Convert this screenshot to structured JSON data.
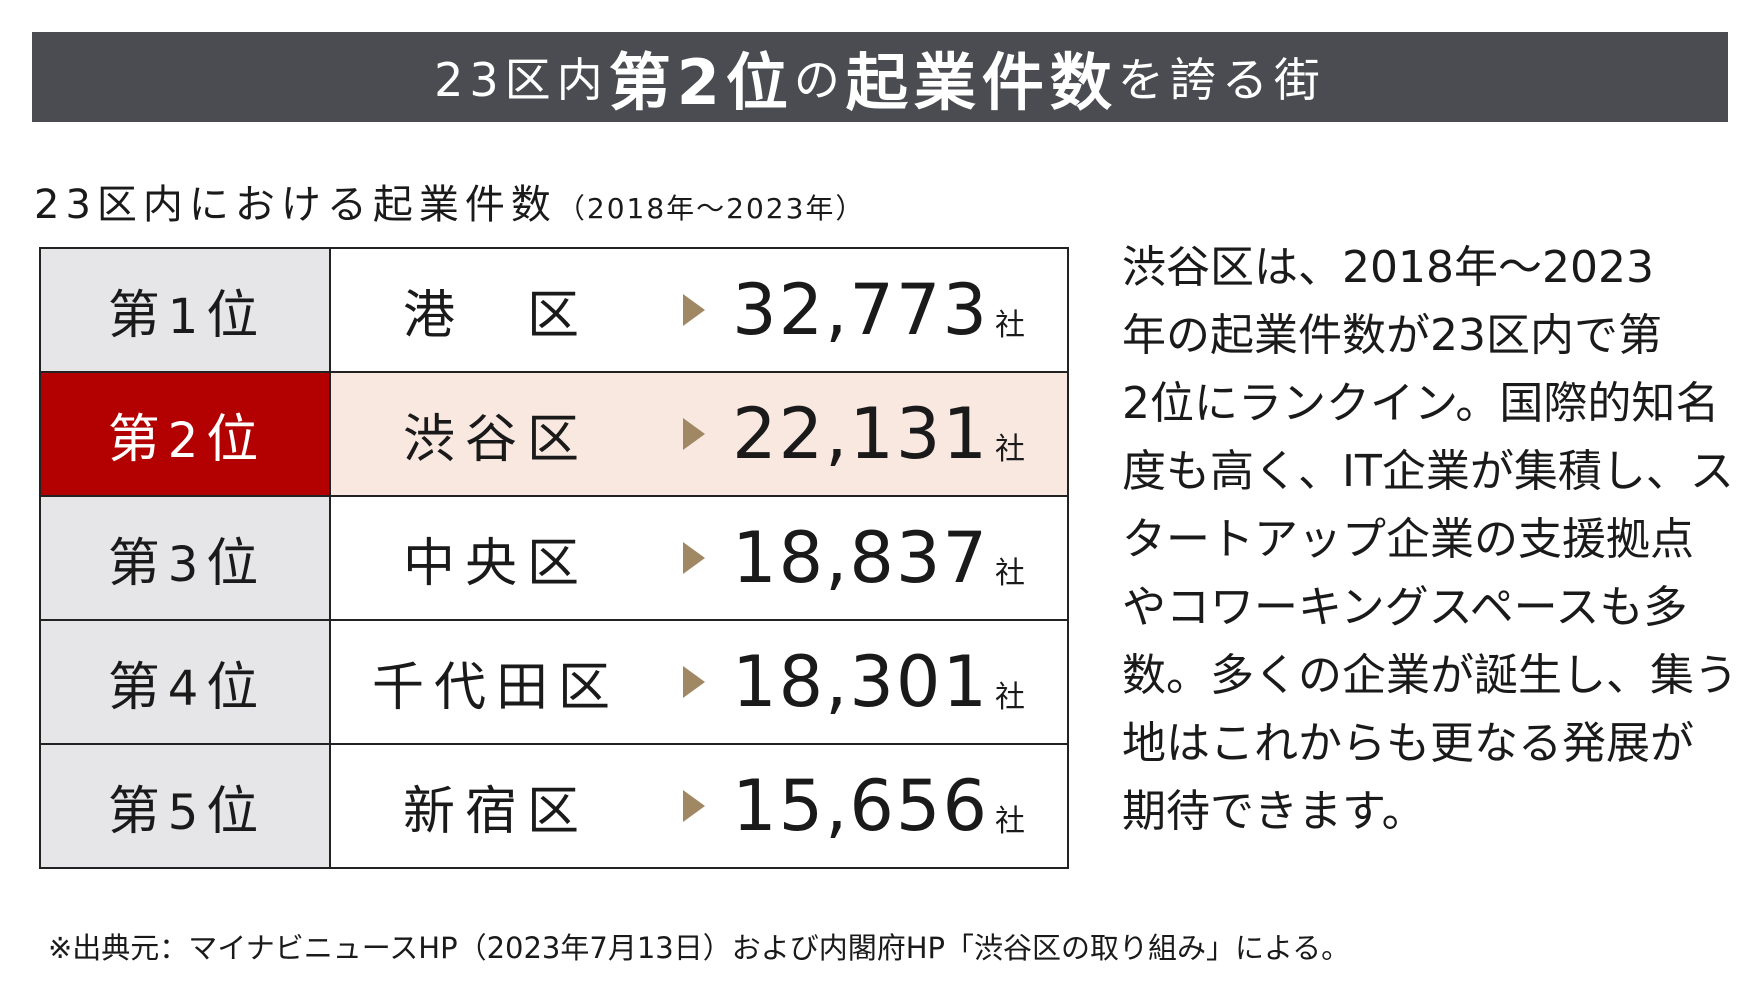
{
  "banner": {
    "part1": "23区内",
    "part2": "第2位",
    "part3": "の",
    "part4": "起業件数",
    "part5": "を誇る街"
  },
  "subtitle": {
    "main": "23区内における起業件数",
    "period": "（2018年～2023年）"
  },
  "ranking": [
    {
      "prefix": "第",
      "num": "1",
      "suffix": "位",
      "ward": "港　区",
      "value": "32,773",
      "unit": "社",
      "highlight": false
    },
    {
      "prefix": "第",
      "num": "2",
      "suffix": "位",
      "ward": "渋谷区",
      "value": "22,131",
      "unit": "社",
      "highlight": true
    },
    {
      "prefix": "第",
      "num": "3",
      "suffix": "位",
      "ward": "中央区",
      "value": "18,837",
      "unit": "社",
      "highlight": false
    },
    {
      "prefix": "第",
      "num": "4",
      "suffix": "位",
      "ward": "千代田区",
      "value": "18,301",
      "unit": "社",
      "highlight": false
    },
    {
      "prefix": "第",
      "num": "5",
      "suffix": "位",
      "ward": "新宿区",
      "value": "15,656",
      "unit": "社",
      "highlight": false
    }
  ],
  "description": [
    "渋谷区は、2018年～2023",
    "年の起業件数が23区内で第",
    "2位にランクイン。国際的知名",
    "度も高く、IT企業が集積し、ス",
    "タートアップ企業の支援拠点",
    "やコワーキングスペースも多",
    "数。多くの企業が誕生し、集う",
    "地はこれからも更なる発展が",
    "期待できます。"
  ],
  "source": "※出典元：マイナビニュースHP（2023年7月13日）および内閣府HP「渋谷区の取り組み」による。",
  "colors": {
    "banner_bg": "#4a4c52",
    "highlight_rank_bg": "#b30000",
    "highlight_row_bg": "#f9e8e0",
    "rank_cell_bg": "#e6e6e8",
    "arrow": "#a08864"
  }
}
